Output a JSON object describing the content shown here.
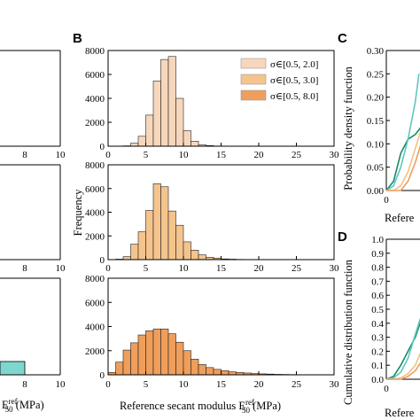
{
  "figure": {
    "panel_letters": [
      "B",
      "C",
      "D"
    ],
    "left_partial_xlabel": "E50ref (MPa)",
    "xlabel_prefix": "Reference secant modulus ",
    "xlabel_unit": " (MPa)",
    "ylabel": "Frequency",
    "c_ylabel": "Probability density function",
    "d_ylabel": "Cumulative distribution function",
    "cd_xlabel_partial": "Refere",
    "colors": {
      "s1": "#f7d7bb",
      "s2": "#f5c48d",
      "s3": "#ef9e5c",
      "teal_fill": "#7fd6cf",
      "green": "#1a8a64",
      "teal": "#5ec7c0",
      "tan": "#f0c383",
      "orange": "#ee9c5e"
    }
  },
  "chart_data": [
    {
      "panel": "B-1",
      "type": "bar",
      "series_name": "σ∈[0.5, 2.0]",
      "bin_width": 1,
      "bin_left": [
        2,
        3,
        4,
        5,
        6,
        7,
        8,
        9,
        10,
        11,
        12,
        13,
        14,
        15
      ],
      "values": [
        30,
        250,
        830,
        2600,
        5450,
        7250,
        7500,
        4000,
        1300,
        420,
        130,
        50,
        20,
        10
      ],
      "xlim": [
        0,
        30
      ],
      "ylim": [
        0,
        8000
      ],
      "xticks": [
        "0",
        "5",
        "10",
        "15",
        "20",
        "25",
        "30"
      ],
      "yticks": [
        "0",
        "2000",
        "4000",
        "6000",
        "8000"
      ]
    },
    {
      "panel": "B-2",
      "type": "bar",
      "series_name": "σ∈[0.5, 3.0]",
      "bin_width": 1,
      "bin_left": [
        1,
        2,
        3,
        4,
        5,
        6,
        7,
        8,
        9,
        10,
        11,
        12,
        13,
        14,
        15,
        16,
        17,
        18
      ],
      "values": [
        40,
        250,
        1300,
        2350,
        4150,
        6400,
        6150,
        4100,
        2900,
        1500,
        800,
        400,
        200,
        130,
        60,
        40,
        20,
        10
      ],
      "xlim": [
        0,
        30
      ],
      "ylim": [
        0,
        8000
      ],
      "xticks": [
        "0",
        "5",
        "10",
        "15",
        "20",
        "25",
        "30"
      ],
      "yticks": [
        "0",
        "2000",
        "4000",
        "6000",
        "8000"
      ]
    },
    {
      "panel": "B-3",
      "type": "bar",
      "series_name": "σ∈[0.5, 8.0]",
      "bin_width": 1,
      "bin_left": [
        0,
        1,
        2,
        3,
        4,
        5,
        6,
        7,
        8,
        9,
        10,
        11,
        12,
        13,
        14,
        15,
        16,
        17,
        18,
        19,
        20,
        21,
        22,
        23,
        24,
        25
      ],
      "values": [
        200,
        1050,
        2050,
        2650,
        3300,
        3650,
        3800,
        3800,
        3400,
        2700,
        2000,
        1300,
        850,
        600,
        450,
        350,
        250,
        200,
        150,
        100,
        80,
        60,
        40,
        30,
        20,
        10
      ],
      "xlim": [
        0,
        30
      ],
      "ylim": [
        0,
        8000
      ],
      "xticks": [
        "0",
        "5",
        "10",
        "15",
        "20",
        "25",
        "30"
      ],
      "yticks": [
        "0",
        "2000",
        "4000",
        "6000",
        "8000"
      ]
    },
    {
      "panel": "C",
      "type": "line",
      "ylim": [
        0,
        0.3
      ],
      "yticks": [
        "0.00",
        "0.05",
        "0.10",
        "0.15",
        "0.20",
        "0.25",
        "0.30"
      ],
      "xticks": [
        "0",
        "5"
      ],
      "series": [
        {
          "color_key": "green",
          "x": [
            0,
            1,
            2,
            3,
            4,
            5,
            5.5
          ],
          "y": [
            0.0,
            0.02,
            0.08,
            0.11,
            0.12,
            0.14,
            0.16
          ]
        },
        {
          "color_key": "teal",
          "x": [
            0,
            1,
            2,
            3,
            4,
            4.5
          ],
          "y": [
            0.0,
            0.01,
            0.05,
            0.11,
            0.19,
            0.25
          ]
        },
        {
          "color_key": "tan",
          "x": [
            0,
            1,
            2,
            3,
            4,
            5,
            5.5
          ],
          "y": [
            0.0,
            0.0,
            0.01,
            0.04,
            0.09,
            0.14,
            0.17
          ]
        },
        {
          "color_key": "orange",
          "x": [
            0,
            1,
            2,
            3,
            4,
            5,
            5.5
          ],
          "y": [
            0.0,
            0.0,
            0.0,
            0.02,
            0.06,
            0.11,
            0.15
          ]
        }
      ]
    },
    {
      "panel": "D",
      "type": "line",
      "ylim": [
        0,
        1.0
      ],
      "yticks": [
        "0.0",
        "0.1",
        "0.2",
        "0.3",
        "0.4",
        "0.5",
        "0.6",
        "0.7",
        "0.8",
        "0.9",
        "1.0"
      ],
      "xticks": [
        "0",
        "5"
      ],
      "series": [
        {
          "color_key": "green",
          "x": [
            0,
            1,
            2,
            3,
            4,
            5,
            5.5
          ],
          "y": [
            0.0,
            0.02,
            0.1,
            0.2,
            0.3,
            0.45,
            0.52
          ]
        },
        {
          "color_key": "teal",
          "x": [
            0,
            1,
            2,
            3,
            4,
            5
          ],
          "y": [
            0.0,
            0.01,
            0.05,
            0.15,
            0.32,
            0.48
          ]
        },
        {
          "color_key": "tan",
          "x": [
            0,
            1,
            2,
            3,
            4,
            5,
            5.5
          ],
          "y": [
            0.0,
            0.0,
            0.01,
            0.04,
            0.1,
            0.22,
            0.33
          ]
        },
        {
          "color_key": "orange",
          "x": [
            0,
            1,
            2,
            3,
            4,
            5,
            5.5
          ],
          "y": [
            0.0,
            0.0,
            0.0,
            0.02,
            0.06,
            0.14,
            0.22
          ]
        }
      ]
    },
    {
      "panel": "A-partial",
      "type": "bar",
      "xticks": [
        "8",
        "10"
      ],
      "bars_bottom": [
        {
          "x0": 4,
          "x1": 8,
          "value": 0.5
        }
      ]
    }
  ]
}
